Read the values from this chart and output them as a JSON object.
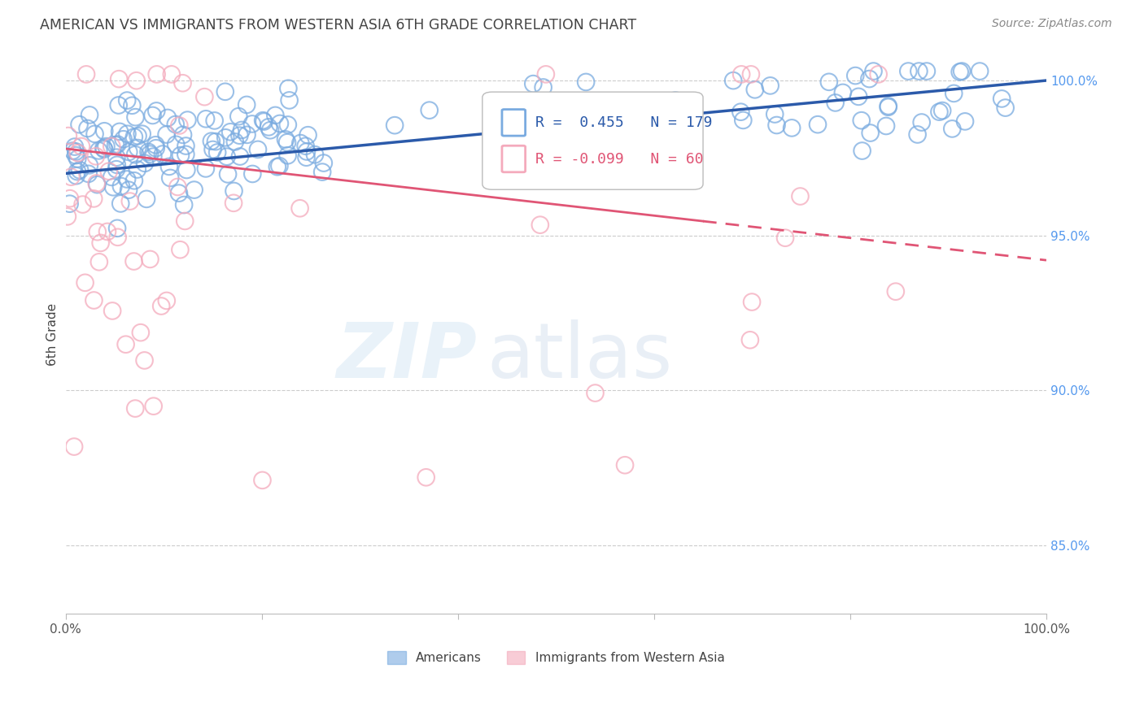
{
  "title": "AMERICAN VS IMMIGRANTS FROM WESTERN ASIA 6TH GRADE CORRELATION CHART",
  "source": "Source: ZipAtlas.com",
  "ylabel": "6th Grade",
  "xlim": [
    0.0,
    1.0
  ],
  "ylim": [
    0.828,
    1.008
  ],
  "yticks": [
    0.85,
    0.9,
    0.95,
    1.0
  ],
  "ytick_labels": [
    "85.0%",
    "90.0%",
    "95.0%",
    "100.0%"
  ],
  "xticks": [
    0.0,
    0.2,
    0.4,
    0.6,
    0.8,
    1.0
  ],
  "xtick_labels": [
    "0.0%",
    "",
    "",
    "",
    "",
    "100.0%"
  ],
  "blue_r": 0.455,
  "blue_n": 179,
  "pink_r": -0.099,
  "pink_n": 60,
  "blue_color": "#7AABE0",
  "pink_color": "#F4AABC",
  "blue_line_color": "#2B5AAA",
  "pink_line_color": "#E05575",
  "legend_americans": "Americans",
  "legend_immigrants": "Immigrants from Western Asia",
  "grid_color": "#CCCCCC",
  "title_color": "#444444",
  "right_axis_color": "#5599EE",
  "background_color": "#FFFFFF"
}
